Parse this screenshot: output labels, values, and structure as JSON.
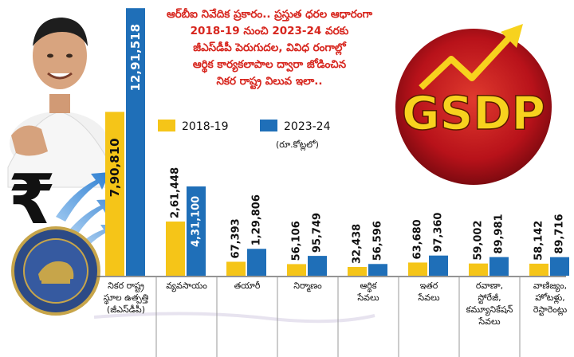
{
  "header": {
    "text": "ఆర్‌బీఐ నివేదిక ప్రకారం.. ప్రస్తుత ధరల ఆధారంగా 2018-19 నుంచి 2023-24 వరకు జీఎస్‌డీపీ పెరుగుదల, వివిధ రంగాల్లో ఆర్థిక కార్యకలాపాల ద్వారా జోడించిన నికర రాష్ట్ర విలువ ఇలా..",
    "lines": [
      "ఆర్‌బీఐ నివేదిక ప్రకారం.. ప్రస్తుత ధరల ఆధారంగా",
      "2018-19 నుంచి 2023-24 వరకు",
      "జీఎస్‌డీపీ  పెరుగుదల, వివిధ రంగాల్లో",
      "ఆర్థిక కార్యకలాపాల ద్వారా జోడించిన",
      "నికర రాష్ట్ర విలువ ఇలా.."
    ]
  },
  "badge": {
    "text": "GSDP"
  },
  "unit_note": "(రూ.కోట్లలో)",
  "colors": {
    "y2018": "#F5C518",
    "y2023": "#1F6FB8",
    "header_text": "#D7261E",
    "badge_bg": "#C4161C",
    "badge_text": "#F7D21E"
  },
  "icons": [
    "rupee-icon",
    "growth-arrows-icon",
    "rbi-seal-icon",
    "arrow-up-icon"
  ],
  "chart_data": {
    "type": "bar",
    "categories": [
      "నికర రాష్ట్ర స్థూల ఉత్పత్తి (జీఎస్‌డీపీ)",
      "వ్యవసాయం",
      "తయారీ",
      "నిర్మాణం",
      "ఆర్థిక సేవలు",
      "ఇతర సేవలు",
      "రవాణా, స్టోరేజీ, కమ్యూనికేషన్ సేవలు",
      "వాణిజ్యం, హోటళ్లు, రెస్టారెంట్లు"
    ],
    "category_lines": [
      [
        "నికర రాష్ట్ర",
        "స్థూల ఉత్పత్తి",
        "(జీఎస్‌డీపీ)"
      ],
      [
        "వ్యవసాయం"
      ],
      [
        "తయారీ"
      ],
      [
        "నిర్మాణం"
      ],
      [
        "ఆర్థిక",
        "సేవలు"
      ],
      [
        "ఇతర",
        "సేవలు"
      ],
      [
        "రవాణా,",
        "స్టోరేజీ,",
        "కమ్యూనికేషన్",
        "సేవలు"
      ],
      [
        "వాణిజ్యం,",
        "హోటళ్లు,",
        "రెస్టారెంట్లు"
      ]
    ],
    "series": [
      {
        "name": "2018-19",
        "values": [
          790810,
          261448,
          67393,
          56106,
          32438,
          63680,
          59002,
          58142
        ],
        "labels": [
          "7,90,810",
          "2,61,448",
          "67,393",
          "56,106",
          "32,438",
          "63,680",
          "59,002",
          "58,142"
        ]
      },
      {
        "name": "2023-24",
        "values": [
          1291518,
          431100,
          129806,
          95749,
          56596,
          97360,
          89981,
          89716
        ],
        "labels": [
          "12,91,518",
          "4,31,100",
          "1,29,806",
          "95,749",
          "56,596",
          "97,360",
          "89,981",
          "89,716"
        ]
      }
    ],
    "ylim": [
      0,
      1300000
    ],
    "legend": "top-right",
    "grid": false
  }
}
